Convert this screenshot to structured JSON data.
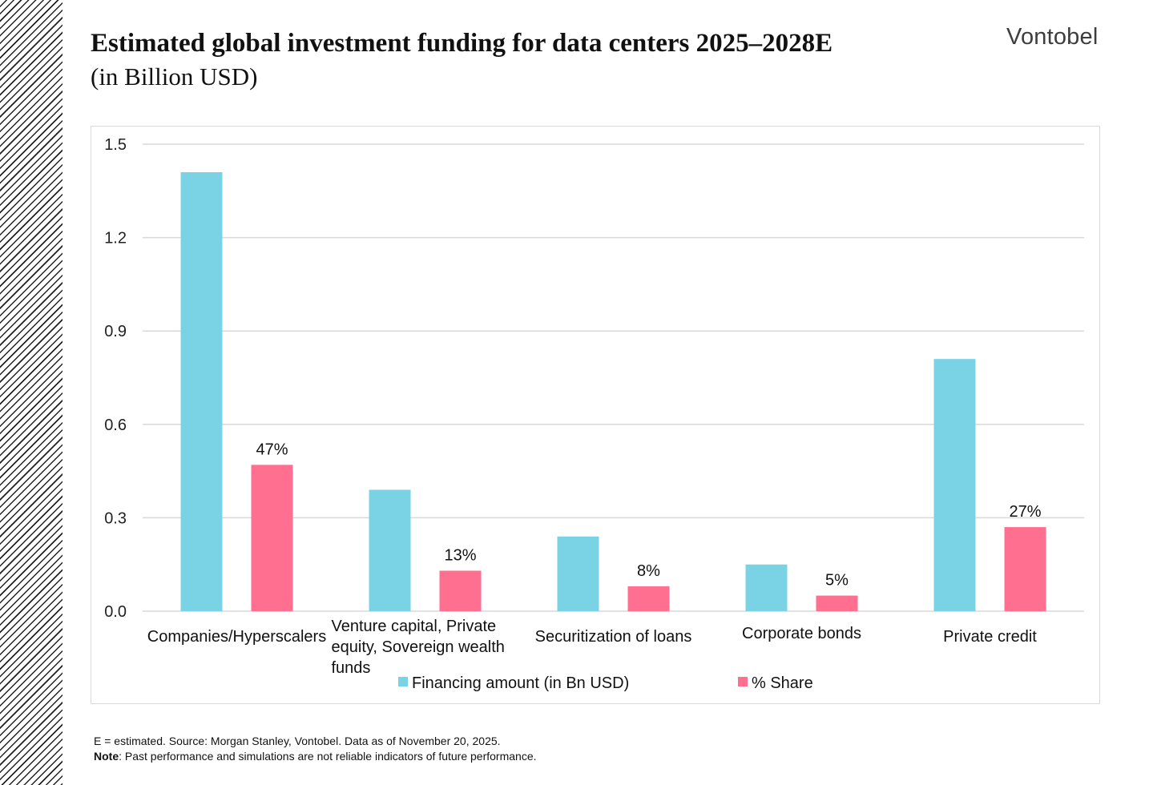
{
  "header": {
    "title": "Estimated global investment funding for data centers 2025–2028E",
    "subtitle": "(in Billion USD)",
    "logo": "Vontobel"
  },
  "chart_data": {
    "type": "bar",
    "categories": [
      [
        "Companies/Hyperscalers"
      ],
      [
        "Venture capital, Private",
        "equity, Sovereign wealth",
        "funds"
      ],
      [
        "Securitization of loans"
      ],
      [
        "Corporate bonds"
      ],
      [
        "Private credit"
      ]
    ],
    "series": [
      {
        "name": "Financing amount (in Bn USD)",
        "color": "#7ad3e5",
        "values": [
          1.41,
          0.39,
          0.24,
          0.15,
          0.81
        ],
        "data_labels": [
          "",
          "",
          "",
          "",
          ""
        ]
      },
      {
        "name": "% Share",
        "color": "#ff7090",
        "values": [
          0.47,
          0.13,
          0.08,
          0.05,
          0.27
        ],
        "data_labels": [
          "47%",
          "13%",
          "8%",
          "5%",
          "27%"
        ]
      }
    ],
    "y_ticks": [
      "0.0",
      "0.3",
      "0.6",
      "0.9",
      "1.2",
      "1.5"
    ],
    "ylim": [
      0,
      1.5
    ],
    "grid": true,
    "legend_position": "bottom"
  },
  "footer": {
    "source": "E = estimated. Source: Morgan Stanley, Vontobel. Data as of November 20, 2025.",
    "note_label": "Note",
    "note_text": ": Past performance and simulations are not reliable indicators of future performance."
  }
}
